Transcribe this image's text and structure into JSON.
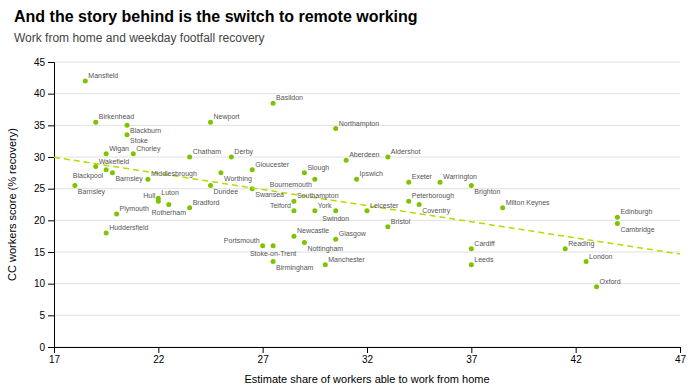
{
  "chart_data": {
    "type": "scatter",
    "title": "And the story behind is the switch to remote working",
    "subtitle": "Work from home and weekday footfall recovery",
    "xlabel": "Estimate share of workers able to work from home",
    "ylabel": "CC workers score (% recovery)",
    "xlim": [
      17,
      47
    ],
    "ylim": [
      0,
      45
    ],
    "xticks": [
      17,
      22,
      27,
      32,
      37,
      42,
      47
    ],
    "yticks": [
      0,
      5,
      10,
      15,
      20,
      25,
      30,
      35,
      40,
      45
    ],
    "grid": true,
    "series": [
      {
        "type": "scatter",
        "color": "#7dc400",
        "marker": "circle",
        "x": [
          18.5,
          19.0,
          20.5,
          20.5,
          24.5,
          27.5,
          30.5,
          19.5,
          20.8,
          23.5,
          25.5,
          31.0,
          33.0,
          19.0,
          19.5,
          19.8,
          21.5,
          25.0,
          26.5,
          29.0,
          29.5,
          31.5,
          34.0,
          35.5,
          37.0,
          18.0,
          19.5,
          20.0,
          28.5,
          29.5,
          30.5,
          32.0,
          33.0,
          34.0,
          34.5,
          38.5,
          44.0,
          44.0,
          22.0,
          22.0,
          22.5,
          23.5,
          24.5,
          26.5,
          28.5,
          28.5,
          29.0,
          27.0,
          27.5,
          30.5,
          27.5,
          30.0,
          37.0,
          37.0,
          41.5,
          42.5,
          43.0
        ],
        "values": [
          42.0,
          35.5,
          35.0,
          33.5,
          35.5,
          38.5,
          34.5,
          30.5,
          30.5,
          30.0,
          30.0,
          29.5,
          30.0,
          28.5,
          28.0,
          27.5,
          26.5,
          27.5,
          28.0,
          27.5,
          26.5,
          26.5,
          26.0,
          26.0,
          25.5,
          25.5,
          18.0,
          21.0,
          21.5,
          21.5,
          21.5,
          21.5,
          19.0,
          23.0,
          22.5,
          22.0,
          20.5,
          19.5,
          23.5,
          23.0,
          22.5,
          22.0,
          25.5,
          25.0,
          23.0,
          17.5,
          16.5,
          16.0,
          16.0,
          17.0,
          13.5,
          13.0,
          15.5,
          13.0,
          15.5,
          13.5,
          9.5
        ],
        "labels": [
          "Mansfield",
          "Birkenhead",
          "Blackburn",
          "Stoke",
          "Newport",
          "Basildon",
          "Northampton",
          "Wigan",
          "Chorley",
          "Chatham",
          "Derby",
          "Aberdeen",
          "Aldershot",
          "Wakefield",
          "Blackpool",
          "Barnsley",
          "Middlesbrough",
          "Worthing",
          "Gloucester",
          "Slough",
          "Bournemouth",
          "Ipswich",
          "Exeter",
          "Warrington",
          "Brighton",
          "Barnsley",
          "Huddersfield",
          "Plymouth",
          "Telford",
          "York",
          "Swindon",
          "Leicester",
          "Bristol",
          "Peterborough",
          "Coventry",
          "Milton Keynes",
          "Edinburgh",
          "Cambridge",
          "Luton",
          "Hull",
          "Rotherham",
          "Bradford",
          "Dundee",
          "Swansea",
          "Southampton",
          "Newcastle",
          "Nottingham",
          "Portsmouth",
          "Stoke-on-Trent",
          "Glasgow",
          "Birmingham",
          "Manchester",
          "Cardiff",
          "Leeds",
          "Reading",
          "London",
          "Oxford"
        ]
      },
      {
        "type": "line",
        "color": "#b8db00",
        "line_style": "dashed",
        "x": [
          17,
          47
        ],
        "values": [
          29.96,
          14.68
        ]
      }
    ]
  }
}
